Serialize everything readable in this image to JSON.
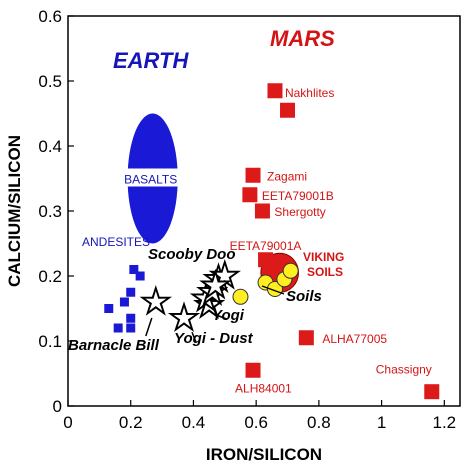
{
  "chart_data": {
    "type": "scatter",
    "xlabel": "IRON/SILICON",
    "ylabel": "CALCIUM/SILICON",
    "xlim": [
      0,
      1.25
    ],
    "ylim": [
      0,
      0.6
    ],
    "x_ticks": [
      "0",
      "0.2",
      "0.4",
      "0.6",
      "0.8",
      "1",
      "1.2"
    ],
    "y_ticks": [
      "0",
      "0.1",
      "0.2",
      "0.3",
      "0.4",
      "0.5",
      "0.6"
    ],
    "grid": false,
    "region_labels": {
      "mars": "MARS",
      "earth": "EARTH"
    },
    "earth_regions": {
      "basalts": {
        "label": "BASALTS",
        "center": [
          0.27,
          0.35
        ],
        "half_width": [
          0.08,
          0.1
        ],
        "color": "#1a1ad6"
      },
      "andesites": {
        "label": "ANDESITES",
        "color": "#1a1ad6",
        "points": [
          {
            "x": 0.13,
            "y": 0.15
          },
          {
            "x": 0.16,
            "y": 0.12
          },
          {
            "x": 0.18,
            "y": 0.16
          },
          {
            "x": 0.2,
            "y": 0.175
          },
          {
            "x": 0.2,
            "y": 0.135
          },
          {
            "x": 0.2,
            "y": 0.12
          },
          {
            "x": 0.21,
            "y": 0.21
          },
          {
            "x": 0.23,
            "y": 0.2
          }
        ]
      }
    },
    "meteorites": {
      "color": "#dd1a1a",
      "points": [
        {
          "name": "Nakhlites",
          "x": 0.66,
          "y": 0.485
        },
        {
          "name": "",
          "x": 0.7,
          "y": 0.455
        },
        {
          "name": "Zagami",
          "x": 0.59,
          "y": 0.355
        },
        {
          "name": "EETA79001B",
          "x": 0.58,
          "y": 0.325
        },
        {
          "name": "Shergotty",
          "x": 0.62,
          "y": 0.3
        },
        {
          "name": "EETA79001A",
          "x": 0.63,
          "y": 0.225
        },
        {
          "name": "ALHA77005",
          "x": 0.76,
          "y": 0.105
        },
        {
          "name": "ALH84001",
          "x": 0.59,
          "y": 0.055
        },
        {
          "name": "Chassigny",
          "x": 1.16,
          "y": 0.022
        }
      ]
    },
    "viking_soils": {
      "label": "VIKING\nSOILS",
      "region": {
        "center": [
          0.675,
          0.205
        ],
        "half_width": [
          0.06,
          0.03
        ],
        "color": "#dd1a1a"
      },
      "color": "#ffee22",
      "points": [
        {
          "x": 0.55,
          "y": 0.168
        },
        {
          "x": 0.63,
          "y": 0.19
        },
        {
          "x": 0.66,
          "y": 0.18
        },
        {
          "x": 0.69,
          "y": 0.195
        },
        {
          "x": 0.71,
          "y": 0.208
        }
      ]
    },
    "pathfinder_rocks_soils": {
      "points": [
        {
          "name": "Barnacle Bill",
          "x": 0.28,
          "y": 0.16
        },
        {
          "name": "Yogi - Dust",
          "x": 0.37,
          "y": 0.135
        },
        {
          "name": "Yogi",
          "x": 0.45,
          "y": 0.155
        },
        {
          "name": "",
          "x": 0.44,
          "y": 0.165
        },
        {
          "name": "",
          "x": 0.46,
          "y": 0.175
        },
        {
          "name": "Scooby Doo",
          "x": 0.48,
          "y": 0.195
        },
        {
          "name": "",
          "x": 0.5,
          "y": 0.2
        },
        {
          "name": "",
          "x": 0.47,
          "y": 0.185
        }
      ],
      "soils_label": "Soils"
    }
  }
}
